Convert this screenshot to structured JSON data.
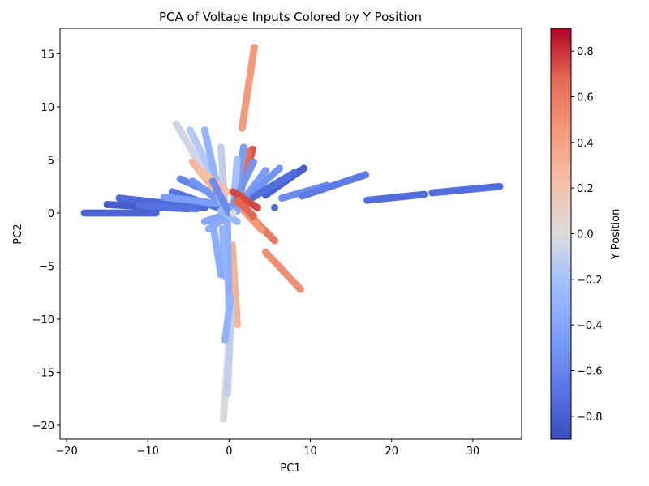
{
  "chart_data": {
    "type": "scatter",
    "title": "PCA of Voltage Inputs Colored by Y Position",
    "xlabel": "PC1",
    "ylabel": "PC2",
    "xlim": [
      -20.8,
      36.0
    ],
    "ylim": [
      -21.3,
      17.4
    ],
    "xticks": [
      -20,
      -10,
      0,
      10,
      20,
      30
    ],
    "yticks": [
      -20,
      -15,
      -10,
      -5,
      0,
      5,
      10,
      15
    ],
    "grid": false,
    "colormap": "coolwarm",
    "colorbar": {
      "label": "Y Position",
      "range": [
        -0.9,
        0.9
      ],
      "ticks": [
        -0.8,
        -0.6,
        -0.4,
        -0.2,
        0.0,
        0.2,
        0.4,
        0.6,
        0.8
      ],
      "tick_labels": [
        "−0.8",
        "−0.6",
        "−0.4",
        "−0.2",
        "0.0",
        "0.2",
        "0.4",
        "0.6",
        "0.8"
      ]
    },
    "streaks": [
      {
        "from": [
          -17.8,
          0.0
        ],
        "to": [
          -9.0,
          0.0
        ],
        "y_position": -0.78
      },
      {
        "from": [
          -15.0,
          0.8
        ],
        "to": [
          -5.0,
          0.4
        ],
        "y_position": -0.82
      },
      {
        "from": [
          -13.5,
          1.4
        ],
        "to": [
          -3.0,
          0.5
        ],
        "y_position": -0.75
      },
      {
        "from": [
          -11.0,
          0.7
        ],
        "to": [
          -4.0,
          0.4
        ],
        "y_position": -0.7
      },
      {
        "from": [
          -7.0,
          2.0
        ],
        "to": [
          -1.0,
          0.4
        ],
        "y_position": -0.7
      },
      {
        "from": [
          -6.0,
          3.2
        ],
        "to": [
          -1.0,
          1.5
        ],
        "y_position": -0.6
      },
      {
        "from": [
          -4.5,
          3.0
        ],
        "to": [
          0.0,
          0.5
        ],
        "y_position": -0.5
      },
      {
        "from": [
          -8.0,
          1.5
        ],
        "to": [
          -1.5,
          0.9
        ],
        "y_position": -0.45
      },
      {
        "from": [
          -6.5,
          8.4
        ],
        "to": [
          -2.0,
          2.5
        ],
        "y_position": -0.05
      },
      {
        "from": [
          -4.8,
          7.8
        ],
        "to": [
          -1.0,
          2.0
        ],
        "y_position": -0.15
      },
      {
        "from": [
          -3.0,
          7.8
        ],
        "to": [
          -1.0,
          1.0
        ],
        "y_position": -0.3
      },
      {
        "from": [
          -1.0,
          6.2
        ],
        "to": [
          -0.5,
          0.5
        ],
        "y_position": -0.1
      },
      {
        "from": [
          -4.5,
          4.8
        ],
        "to": [
          -0.5,
          1.0
        ],
        "y_position": 0.3
      },
      {
        "from": [
          -3.5,
          4.0
        ],
        "to": [
          -0.2,
          2.0
        ],
        "y_position": 0.22
      },
      {
        "from": [
          3.1,
          15.6
        ],
        "to": [
          1.6,
          8.0
        ],
        "y_position": 0.45
      },
      {
        "from": [
          2.9,
          6.0
        ],
        "to": [
          0.8,
          0.3
        ],
        "y_position": 0.72
      },
      {
        "from": [
          2.4,
          5.8
        ],
        "to": [
          1.2,
          1.0
        ],
        "y_position": 0.65
      },
      {
        "from": [
          1.8,
          6.2
        ],
        "to": [
          0.8,
          1.5
        ],
        "y_position": -0.45
      },
      {
        "from": [
          1.0,
          5.0
        ],
        "to": [
          0.5,
          0.5
        ],
        "y_position": -0.2
      },
      {
        "from": [
          3.0,
          4.8
        ],
        "to": [
          0.5,
          0.8
        ],
        "y_position": -0.5
      },
      {
        "from": [
          4.5,
          4.0
        ],
        "to": [
          1.0,
          0.5
        ],
        "y_position": -0.45
      },
      {
        "from": [
          6.2,
          4.2
        ],
        "to": [
          1.2,
          0.8
        ],
        "y_position": -0.5
      },
      {
        "from": [
          9.2,
          4.2
        ],
        "to": [
          4.5,
          1.7
        ],
        "y_position": -0.8
      },
      {
        "from": [
          8.0,
          3.8
        ],
        "to": [
          3.0,
          1.5
        ],
        "y_position": -0.72
      },
      {
        "from": [
          12.0,
          2.6
        ],
        "to": [
          6.5,
          1.4
        ],
        "y_position": -0.55
      },
      {
        "from": [
          16.8,
          3.6
        ],
        "to": [
          9.0,
          1.6
        ],
        "y_position": -0.65
      },
      {
        "from": [
          33.3,
          2.5
        ],
        "to": [
          25.0,
          1.9
        ],
        "y_position": -0.72
      },
      {
        "from": [
          24.0,
          1.75
        ],
        "to": [
          17.0,
          1.2
        ],
        "y_position": -0.72
      },
      {
        "from": [
          5.6,
          -2.6
        ],
        "to": [
          1.0,
          1.0
        ],
        "y_position": 0.6
      },
      {
        "from": [
          4.0,
          -1.6
        ],
        "to": [
          1.5,
          0.5
        ],
        "y_position": 0.45
      },
      {
        "from": [
          3.5,
          0.5
        ],
        "to": [
          0.5,
          2.0
        ],
        "y_position": 0.75
      },
      {
        "from": [
          3.0,
          -0.3
        ],
        "to": [
          1.0,
          1.2
        ],
        "y_position": 0.68
      },
      {
        "from": [
          8.8,
          -7.2
        ],
        "to": [
          4.5,
          -3.7
        ],
        "y_position": 0.5
      },
      {
        "from": [
          1.0,
          -10.5
        ],
        "to": [
          0.4,
          -3.0
        ],
        "y_position": 0.3
      },
      {
        "from": [
          0.0,
          -10.0
        ],
        "to": [
          -0.2,
          -1.0
        ],
        "y_position": -0.35
      },
      {
        "from": [
          -0.5,
          -6.0
        ],
        "to": [
          -0.8,
          -1.5
        ],
        "y_position": -0.3
      },
      {
        "from": [
          -1.0,
          -5.8
        ],
        "to": [
          -2.0,
          -1.0
        ],
        "y_position": -0.35
      },
      {
        "from": [
          -0.7,
          -19.4
        ],
        "to": [
          0.1,
          -11.0
        ],
        "y_position": -0.02
      },
      {
        "from": [
          -0.2,
          -17.0
        ],
        "to": [
          0.3,
          -8.5
        ],
        "y_position": -0.1
      },
      {
        "from": [
          -0.5,
          -12.0
        ],
        "to": [
          0.2,
          -8.0
        ],
        "y_position": -0.3
      },
      {
        "from": [
          -2.5,
          -1.5
        ],
        "to": [
          0.5,
          0.0
        ],
        "y_position": -0.35
      },
      {
        "from": [
          -3.0,
          -0.8
        ],
        "to": [
          1.0,
          0.2
        ],
        "y_position": -0.4
      },
      {
        "from": [
          -1.0,
          0.2
        ],
        "to": [
          1.0,
          -0.8
        ],
        "y_position": -0.25
      },
      {
        "from": [
          -2.0,
          3.0
        ],
        "to": [
          0.0,
          0.0
        ],
        "y_position": -0.55
      }
    ],
    "points": [
      {
        "x": 5.6,
        "y": 0.5,
        "y_position": -0.75
      },
      {
        "x": -1.5,
        "y": 2.0,
        "y_position": -0.55
      },
      {
        "x": 0.5,
        "y": 0.0,
        "y_position": 0.0
      }
    ]
  }
}
